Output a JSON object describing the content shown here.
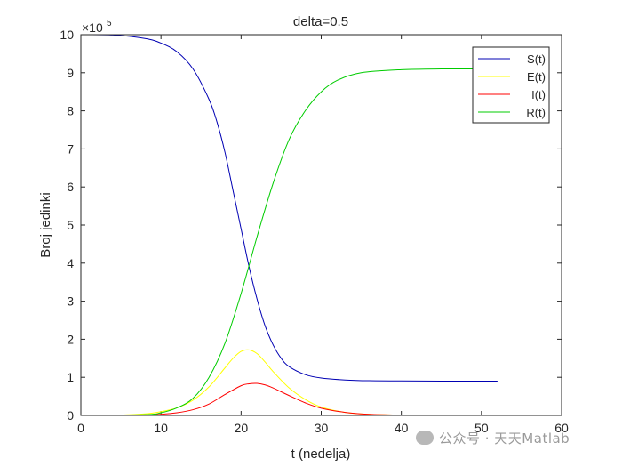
{
  "chart_data": {
    "type": "line",
    "title": "delta=0.5",
    "xlabel": "t (nedelja)",
    "ylabel": "Broj jedinki",
    "exponent_label": "×10",
    "exponent_power": "5",
    "xlim": [
      0,
      60
    ],
    "ylim": [
      0,
      10
    ],
    "xticks": [
      "0",
      "10",
      "20",
      "30",
      "40",
      "50",
      "60"
    ],
    "yticks": [
      "0",
      "1",
      "2",
      "3",
      "4",
      "5",
      "6",
      "7",
      "8",
      "9",
      "10"
    ],
    "legend_position": "top-right",
    "series": [
      {
        "name": "S(t)",
        "color": "#0000b3",
        "x": [
          0,
          4,
          8,
          10,
          12,
          14,
          16,
          17,
          18,
          19,
          20,
          21,
          22,
          23,
          24,
          25,
          26,
          28,
          30,
          33,
          36,
          40,
          45,
          52
        ],
        "values": [
          10,
          9.99,
          9.9,
          9.78,
          9.55,
          9.1,
          8.3,
          7.7,
          6.9,
          5.9,
          4.9,
          3.9,
          3.05,
          2.35,
          1.85,
          1.5,
          1.28,
          1.07,
          0.98,
          0.93,
          0.91,
          0.905,
          0.9,
          0.9
        ]
      },
      {
        "name": "E(t)",
        "color": "#ffff00",
        "x": [
          0,
          5,
          8,
          10,
          12,
          14,
          16,
          18,
          19,
          20,
          21,
          22,
          23,
          24,
          26,
          28,
          30,
          33,
          36,
          40,
          45,
          52
        ],
        "values": [
          0,
          0.01,
          0.04,
          0.1,
          0.2,
          0.4,
          0.75,
          1.25,
          1.5,
          1.68,
          1.72,
          1.62,
          1.4,
          1.15,
          0.72,
          0.42,
          0.22,
          0.08,
          0.03,
          0.01,
          0.0,
          0.0
        ]
      },
      {
        "name": "I(t)",
        "color": "#ff0000",
        "x": [
          0,
          5,
          8,
          10,
          12,
          14,
          16,
          18,
          20,
          21,
          22,
          23,
          24,
          26,
          28,
          30,
          33,
          36,
          40,
          45,
          52
        ],
        "values": [
          0,
          0.0,
          0.01,
          0.03,
          0.07,
          0.15,
          0.3,
          0.55,
          0.78,
          0.83,
          0.84,
          0.8,
          0.72,
          0.52,
          0.33,
          0.19,
          0.08,
          0.03,
          0.01,
          0.0,
          0.0
        ]
      },
      {
        "name": "R(t)",
        "color": "#00cc00",
        "x": [
          0,
          8,
          10,
          12,
          14,
          16,
          18,
          20,
          22,
          24,
          26,
          28,
          30,
          32,
          35,
          40,
          45,
          52
        ],
        "values": [
          0,
          0.02,
          0.07,
          0.2,
          0.45,
          1.0,
          1.9,
          3.2,
          4.7,
          6.1,
          7.25,
          8.0,
          8.5,
          8.8,
          9.0,
          9.08,
          9.1,
          9.1
        ]
      }
    ]
  },
  "watermark": {
    "text": "公众号 · 天天Matlab",
    "icon": "wechat-icon"
  }
}
